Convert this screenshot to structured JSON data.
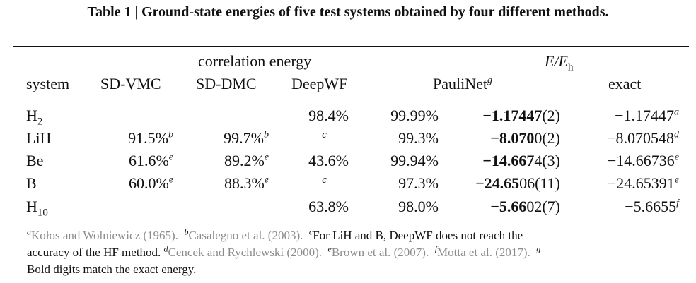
{
  "caption": "Table 1 | Ground-state energies of five test systems obtained by four different methods.",
  "header": {
    "group_corr": "correlation energy",
    "group_e_main": "E/E",
    "group_e_sub": "h",
    "col_system": "system",
    "col_sdvmc": "SD-VMC",
    "col_sddmc": "SD-DMC",
    "col_deepwf": "DeepWF",
    "col_paulinet": "PauliNet",
    "col_paulinet_sup": "g",
    "col_exact": "exact"
  },
  "rows": [
    {
      "sys": "H",
      "sys_sub": "2",
      "vmc": "",
      "vmc_sup": "",
      "dmc": "",
      "dmc_sup": "",
      "dwf": "98.4%",
      "pn": "99.99%",
      "e_bold": "−1.17447",
      "e_rest": "(2)",
      "exact": "−1.17447",
      "exact_sup": "a"
    },
    {
      "sys": "LiH",
      "sys_sub": "",
      "vmc": "91.5%",
      "vmc_sup": "b",
      "dmc": "99.7%",
      "dmc_sup": "b",
      "dwf": "c",
      "pn": "99.3%",
      "e_bold": "−8.070",
      "e_rest": "0(2)",
      "exact": "−8.070548",
      "exact_sup": "d"
    },
    {
      "sys": "Be",
      "sys_sub": "",
      "vmc": "61.6%",
      "vmc_sup": "e",
      "dmc": "89.2%",
      "dmc_sup": "e",
      "dwf": "43.6%",
      "pn": "99.94%",
      "e_bold": "−14.667",
      "e_rest": "4(3)",
      "exact": "−14.66736",
      "exact_sup": "e"
    },
    {
      "sys": "B",
      "sys_sub": "",
      "vmc": "60.0%",
      "vmc_sup": "e",
      "dmc": "88.3%",
      "dmc_sup": "e",
      "dwf": "c",
      "pn": "97.3%",
      "e_bold": "−24.65",
      "e_rest": "06(11)",
      "exact": "−24.65391",
      "exact_sup": "e"
    },
    {
      "sys": "H",
      "sys_sub": "10",
      "vmc": "",
      "vmc_sup": "",
      "dmc": "",
      "dmc_sup": "",
      "dwf": "63.8%",
      "pn": "98.0%",
      "e_bold": "−5.66",
      "e_rest": "02(7)",
      "exact": "−5.6655",
      "exact_sup": "f"
    }
  ],
  "footnotes": {
    "a_mark": "a",
    "a_ref": "Kołos and Wolniewicz (1965).",
    "b_mark": "b",
    "b_ref": "Casalegno et al. (2003).",
    "c_mark": "c",
    "c_text": "For LiH and B, DeepWF does not reach the",
    "c_text2": "accuracy of the HF method.",
    "d_mark": "d",
    "d_ref": "Cencek and Rychlewski (2000).",
    "e_mark": "e",
    "e_ref": "Brown et al. (2007).",
    "f_mark": "f",
    "f_ref": "Motta et al. (2017).",
    "g_mark": "g",
    "g_text": "Bold digits match the exact energy."
  }
}
